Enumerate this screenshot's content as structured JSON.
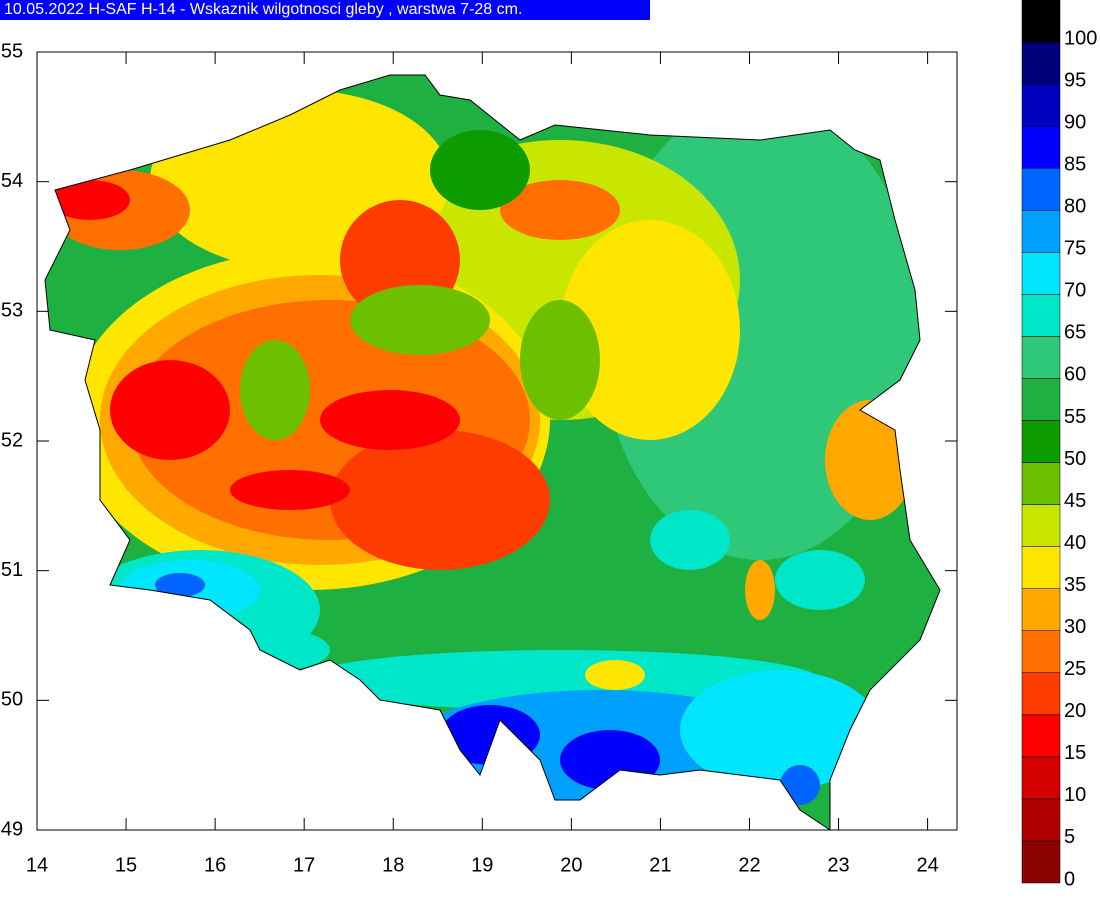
{
  "title": "10.05.2022 H-SAF H-14 - Wskaznik wilgotnosci gleby , warstwa 7-28 cm.",
  "axes": {
    "xlim": [
      14,
      24.33
    ],
    "ylim": [
      49,
      55
    ],
    "xticks": [
      14,
      15,
      16,
      17,
      18,
      19,
      20,
      21,
      22,
      23,
      24
    ],
    "yticks": [
      49,
      50,
      51,
      52,
      53,
      54,
      55
    ]
  },
  "legend": {
    "levels": [
      0,
      5,
      10,
      15,
      20,
      25,
      30,
      35,
      40,
      45,
      50,
      55,
      60,
      65,
      70,
      75,
      80,
      85,
      90,
      95,
      100
    ],
    "colors": [
      "#8b0000",
      "#b00000",
      "#d40000",
      "#ff0000",
      "#ff3c00",
      "#ff7000",
      "#ffa800",
      "#ffe600",
      "#c8e600",
      "#6cc000",
      "#0c9c00",
      "#1eb040",
      "#2ec878",
      "#00e6c8",
      "#00e6ff",
      "#00a0ff",
      "#0064ff",
      "#0000ff",
      "#0000c0",
      "#000078",
      "#000000"
    ]
  }
}
